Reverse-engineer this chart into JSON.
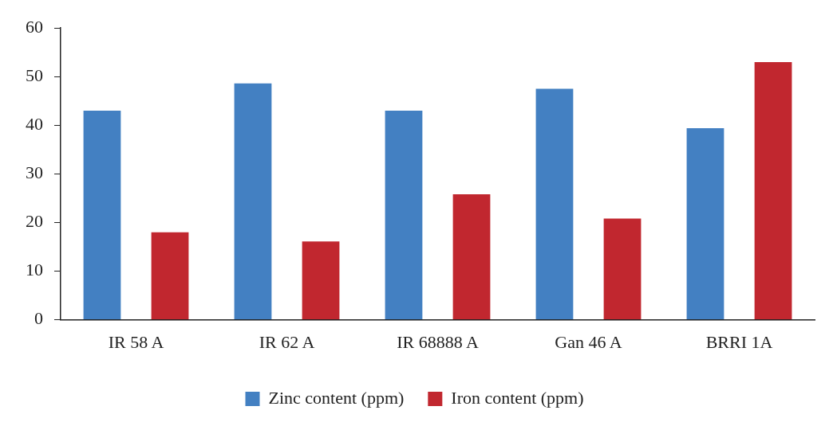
{
  "chart_data": {
    "type": "bar",
    "categories": [
      "IR 58 A",
      "IR 62 A",
      "IR 68888 A",
      "Gan 46 A",
      "BRRI 1A"
    ],
    "series": [
      {
        "name": "Zinc content (ppm)",
        "color": "#4380c2",
        "values": [
          43,
          48.6,
          43,
          47.5,
          39.4
        ]
      },
      {
        "name": "Iron content (ppm)",
        "color": "#c1272f",
        "values": [
          18,
          16.1,
          25.8,
          20.8,
          53
        ]
      }
    ],
    "ylim": [
      0,
      60
    ],
    "yticks": [
      0,
      10,
      20,
      30,
      40,
      50,
      60
    ],
    "grid": false,
    "legend": "bottom"
  }
}
